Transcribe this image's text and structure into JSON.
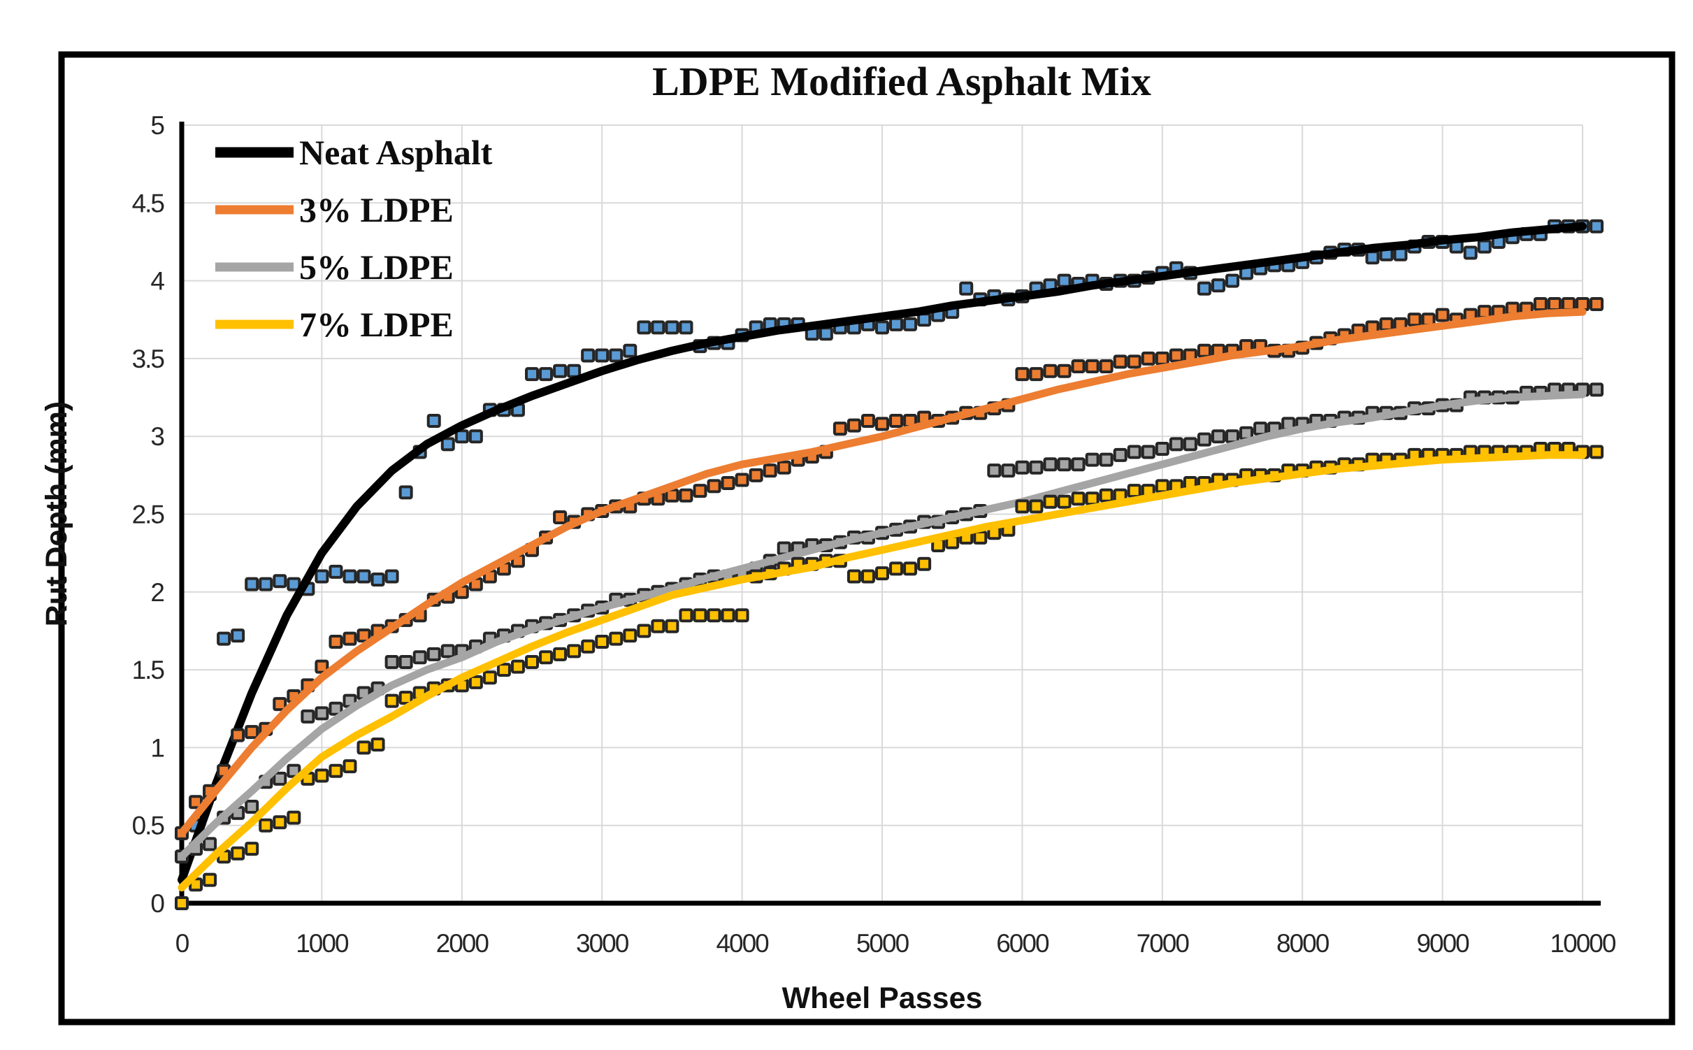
{
  "figure": {
    "background": "#ffffff",
    "frame_color": "#000000",
    "gridline_color": "#d9d9d9",
    "axis_line_color": "#000000",
    "tick_label_color": "#262626",
    "marker_border_color": "#262626"
  },
  "chart_data": {
    "type": "scatter",
    "title": "LDPE Modified Asphalt Mix",
    "xlabel": "Wheel Passes",
    "ylabel": "Rut Depth (mm)",
    "xlim": [
      0,
      10000
    ],
    "ylim": [
      0,
      5
    ],
    "xticks": [
      0,
      1000,
      2000,
      3000,
      4000,
      5000,
      6000,
      7000,
      8000,
      9000,
      10000
    ],
    "yticks": [
      0,
      0.5,
      1,
      1.5,
      2,
      2.5,
      3,
      3.5,
      4,
      4.5,
      5
    ],
    "grid": true,
    "legend_position": "top-left-inside",
    "legend_entries": [
      "Neat Asphalt",
      "3% LDPE",
      "5% LDPE",
      "7% LDPE"
    ],
    "series": [
      {
        "name": "Neat Asphalt",
        "line_color": "#000000",
        "marker_color": "#5B9BD5",
        "scatter_x_start": 0,
        "scatter_x_step": 100,
        "scatter": [
          0,
          0.5,
          0.7,
          1.7,
          1.72,
          2.05,
          2.05,
          2.07,
          2.05,
          2.02,
          2.1,
          2.13,
          2.1,
          2.1,
          2.08,
          2.1,
          2.64,
          2.9,
          3.1,
          2.95,
          3.0,
          3.0,
          3.17,
          3.17,
          3.17,
          3.4,
          3.4,
          3.42,
          3.42,
          3.52,
          3.52,
          3.52,
          3.55,
          3.7,
          3.7,
          3.7,
          3.7,
          3.58,
          3.6,
          3.6,
          3.65,
          3.7,
          3.72,
          3.72,
          3.72,
          3.66,
          3.66,
          3.7,
          3.7,
          3.72,
          3.7,
          3.72,
          3.72,
          3.75,
          3.78,
          3.8,
          3.95,
          3.88,
          3.9,
          3.88,
          3.9,
          3.95,
          3.97,
          4.0,
          3.98,
          4.0,
          3.98,
          4.0,
          4.0,
          4.02,
          4.05,
          4.08,
          4.05,
          3.95,
          3.97,
          4.0,
          4.05,
          4.08,
          4.1,
          4.1,
          4.12,
          4.15,
          4.18,
          4.2,
          4.2,
          4.15,
          4.17,
          4.17,
          4.22,
          4.25,
          4.25,
          4.22,
          4.18,
          4.22,
          4.25,
          4.28,
          4.3,
          4.3,
          4.35,
          4.35,
          4.35,
          4.35
        ],
        "trend_x_start": 0,
        "trend_x_step": 250,
        "trend": [
          0.15,
          0.78,
          1.35,
          1.85,
          2.25,
          2.55,
          2.78,
          2.95,
          3.07,
          3.17,
          3.26,
          3.34,
          3.42,
          3.49,
          3.55,
          3.6,
          3.64,
          3.68,
          3.71,
          3.74,
          3.77,
          3.8,
          3.84,
          3.87,
          3.9,
          3.93,
          3.97,
          4.0,
          4.03,
          4.06,
          4.09,
          4.12,
          4.15,
          4.18,
          4.21,
          4.23,
          4.26,
          4.28,
          4.31,
          4.33,
          4.35
        ]
      },
      {
        "name": "3% LDPE",
        "line_color": "#ED7D31",
        "marker_color": "#ED7D31",
        "scatter_x_start": 0,
        "scatter_x_step": 100,
        "scatter": [
          0.45,
          0.65,
          0.72,
          0.85,
          1.08,
          1.1,
          1.12,
          1.28,
          1.33,
          1.4,
          1.52,
          1.68,
          1.7,
          1.72,
          1.75,
          1.78,
          1.82,
          1.85,
          1.95,
          1.97,
          2.0,
          2.05,
          2.1,
          2.15,
          2.2,
          2.27,
          2.35,
          2.48,
          2.45,
          2.5,
          2.52,
          2.55,
          2.55,
          2.6,
          2.6,
          2.62,
          2.62,
          2.65,
          2.68,
          2.7,
          2.72,
          2.75,
          2.78,
          2.8,
          2.85,
          2.87,
          2.9,
          3.05,
          3.07,
          3.1,
          3.08,
          3.1,
          3.1,
          3.12,
          3.1,
          3.12,
          3.15,
          3.15,
          3.18,
          3.2,
          3.4,
          3.4,
          3.42,
          3.42,
          3.45,
          3.45,
          3.45,
          3.48,
          3.48,
          3.5,
          3.5,
          3.52,
          3.52,
          3.55,
          3.55,
          3.55,
          3.58,
          3.58,
          3.55,
          3.55,
          3.57,
          3.6,
          3.63,
          3.65,
          3.68,
          3.7,
          3.72,
          3.72,
          3.75,
          3.75,
          3.78,
          3.75,
          3.78,
          3.8,
          3.8,
          3.82,
          3.82,
          3.85,
          3.85,
          3.85,
          3.85,
          3.85
        ],
        "trend_x_start": 0,
        "trend_x_step": 250,
        "trend": [
          0.45,
          0.73,
          1.0,
          1.24,
          1.45,
          1.62,
          1.77,
          1.92,
          2.06,
          2.18,
          2.3,
          2.42,
          2.52,
          2.6,
          2.68,
          2.76,
          2.82,
          2.86,
          2.9,
          2.95,
          3.0,
          3.06,
          3.12,
          3.18,
          3.24,
          3.3,
          3.35,
          3.4,
          3.44,
          3.48,
          3.52,
          3.55,
          3.58,
          3.62,
          3.65,
          3.68,
          3.71,
          3.74,
          3.77,
          3.79,
          3.8
        ]
      },
      {
        "name": "5% LDPE",
        "line_color": "#A5A5A5",
        "marker_color": "#A5A5A5",
        "scatter_x_start": 0,
        "scatter_x_step": 100,
        "scatter": [
          0.3,
          0.35,
          0.38,
          0.55,
          0.58,
          0.62,
          0.78,
          0.8,
          0.85,
          1.2,
          1.22,
          1.25,
          1.3,
          1.35,
          1.38,
          1.55,
          1.55,
          1.58,
          1.6,
          1.62,
          1.62,
          1.65,
          1.7,
          1.72,
          1.75,
          1.78,
          1.8,
          1.82,
          1.85,
          1.88,
          1.9,
          1.95,
          1.95,
          1.98,
          2.0,
          2.02,
          2.05,
          2.08,
          2.1,
          2.1,
          2.12,
          2.15,
          2.2,
          2.28,
          2.28,
          2.3,
          2.3,
          2.32,
          2.35,
          2.35,
          2.38,
          2.4,
          2.42,
          2.45,
          2.45,
          2.48,
          2.5,
          2.52,
          2.78,
          2.78,
          2.8,
          2.8,
          2.82,
          2.82,
          2.82,
          2.85,
          2.85,
          2.88,
          2.9,
          2.9,
          2.92,
          2.95,
          2.95,
          2.98,
          3.0,
          3.0,
          3.02,
          3.05,
          3.05,
          3.08,
          3.08,
          3.1,
          3.1,
          3.12,
          3.12,
          3.15,
          3.15,
          3.15,
          3.18,
          3.18,
          3.2,
          3.2,
          3.25,
          3.25,
          3.25,
          3.25,
          3.28,
          3.28,
          3.3,
          3.3,
          3.3,
          3.3
        ],
        "trend_x_start": 0,
        "trend_x_step": 250,
        "trend": [
          0.3,
          0.52,
          0.72,
          0.93,
          1.12,
          1.27,
          1.4,
          1.5,
          1.58,
          1.68,
          1.76,
          1.83,
          1.9,
          1.96,
          2.02,
          2.09,
          2.15,
          2.21,
          2.27,
          2.33,
          2.38,
          2.43,
          2.48,
          2.53,
          2.58,
          2.64,
          2.7,
          2.76,
          2.82,
          2.88,
          2.94,
          3.0,
          3.05,
          3.09,
          3.12,
          3.16,
          3.2,
          3.23,
          3.25,
          3.26,
          3.27
        ]
      },
      {
        "name": "7% LDPE",
        "line_color": "#FFC000",
        "marker_color": "#FFC000",
        "scatter_x_start": 0,
        "scatter_x_step": 100,
        "scatter": [
          0,
          0.12,
          0.15,
          0.3,
          0.32,
          0.35,
          0.5,
          0.52,
          0.55,
          0.8,
          0.82,
          0.85,
          0.88,
          1.0,
          1.02,
          1.3,
          1.32,
          1.35,
          1.38,
          1.4,
          1.4,
          1.42,
          1.45,
          1.5,
          1.52,
          1.55,
          1.58,
          1.6,
          1.62,
          1.65,
          1.68,
          1.7,
          1.72,
          1.75,
          1.78,
          1.78,
          1.85,
          1.85,
          1.85,
          1.85,
          1.85,
          2.1,
          2.12,
          2.15,
          2.18,
          2.18,
          2.2,
          2.2,
          2.1,
          2.1,
          2.12,
          2.15,
          2.15,
          2.18,
          2.3,
          2.32,
          2.35,
          2.35,
          2.38,
          2.4,
          2.55,
          2.55,
          2.58,
          2.58,
          2.6,
          2.6,
          2.62,
          2.62,
          2.65,
          2.65,
          2.68,
          2.68,
          2.7,
          2.7,
          2.72,
          2.72,
          2.75,
          2.75,
          2.75,
          2.78,
          2.78,
          2.8,
          2.8,
          2.82,
          2.82,
          2.85,
          2.85,
          2.85,
          2.88,
          2.88,
          2.88,
          2.88,
          2.9,
          2.9,
          2.9,
          2.9,
          2.9,
          2.92,
          2.92,
          2.92,
          2.9,
          2.9
        ],
        "trend_x_start": 0,
        "trend_x_step": 250,
        "trend": [
          0.1,
          0.32,
          0.52,
          0.74,
          0.94,
          1.08,
          1.2,
          1.33,
          1.45,
          1.55,
          1.65,
          1.74,
          1.82,
          1.9,
          1.98,
          2.03,
          2.08,
          2.12,
          2.16,
          2.22,
          2.27,
          2.32,
          2.37,
          2.42,
          2.46,
          2.5,
          2.54,
          2.58,
          2.62,
          2.66,
          2.7,
          2.73,
          2.76,
          2.79,
          2.81,
          2.83,
          2.85,
          2.86,
          2.87,
          2.88,
          2.88
        ]
      }
    ]
  }
}
